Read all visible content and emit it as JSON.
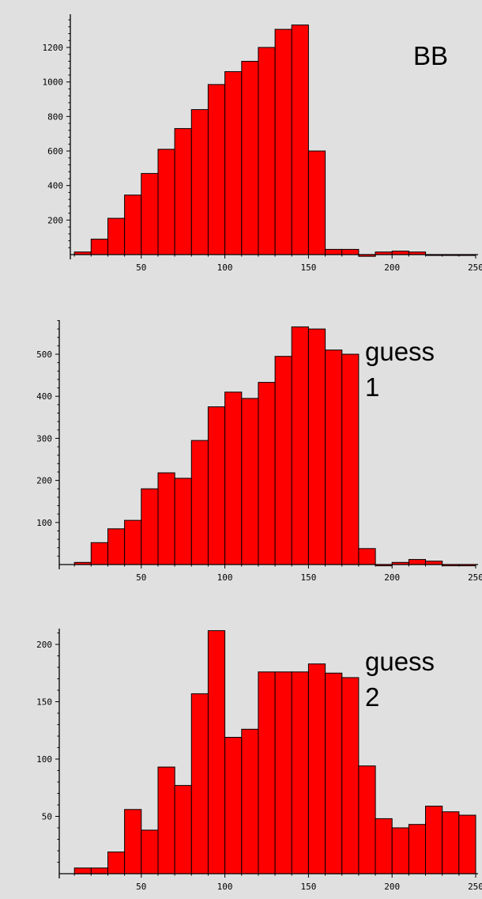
{
  "chart_data": [
    {
      "type": "bar",
      "title": "",
      "panel_label": [
        "BB"
      ],
      "xlim": [
        0,
        250
      ],
      "ylim": [
        0,
        1380
      ],
      "xticks": [
        50,
        100,
        150,
        200,
        250
      ],
      "yticks": [
        200,
        400,
        600,
        800,
        1000,
        1200
      ],
      "bin_width": 10,
      "bins": [
        [
          10,
          20,
          15
        ],
        [
          20,
          30,
          90
        ],
        [
          30,
          40,
          210
        ],
        [
          40,
          50,
          345
        ],
        [
          50,
          60,
          470
        ],
        [
          60,
          70,
          610
        ],
        [
          70,
          80,
          730
        ],
        [
          80,
          90,
          840
        ],
        [
          90,
          100,
          985
        ],
        [
          100,
          110,
          1060
        ],
        [
          110,
          120,
          1120
        ],
        [
          120,
          130,
          1200
        ],
        [
          130,
          140,
          1305
        ],
        [
          140,
          150,
          1330
        ],
        [
          150,
          160,
          600
        ],
        [
          160,
          170,
          30
        ],
        [
          170,
          180,
          30
        ],
        [
          180,
          190,
          -10
        ],
        [
          190,
          200,
          15
        ],
        [
          200,
          210,
          20
        ],
        [
          210,
          220,
          15
        ],
        [
          220,
          230,
          -5
        ],
        [
          230,
          240,
          -5
        ],
        [
          240,
          250,
          -5
        ]
      ],
      "bar_color": "#ff0000",
      "grid": false
    },
    {
      "type": "bar",
      "title": "",
      "panel_label": [
        "guess",
        "1"
      ],
      "xlim": [
        0,
        250
      ],
      "ylim": [
        0,
        580
      ],
      "xticks": [
        50,
        100,
        150,
        200,
        250
      ],
      "yticks": [
        100,
        200,
        300,
        400,
        500
      ],
      "bin_width": 10,
      "bins": [
        [
          10,
          20,
          5
        ],
        [
          20,
          30,
          52
        ],
        [
          30,
          40,
          85
        ],
        [
          40,
          50,
          105
        ],
        [
          50,
          60,
          180
        ],
        [
          60,
          70,
          218
        ],
        [
          70,
          80,
          205
        ],
        [
          80,
          90,
          295
        ],
        [
          90,
          100,
          375
        ],
        [
          100,
          110,
          410
        ],
        [
          110,
          120,
          395
        ],
        [
          120,
          130,
          433
        ],
        [
          130,
          140,
          495
        ],
        [
          140,
          150,
          565
        ],
        [
          150,
          160,
          560
        ],
        [
          160,
          170,
          510
        ],
        [
          170,
          180,
          500
        ],
        [
          180,
          190,
          38
        ],
        [
          190,
          200,
          -3
        ],
        [
          200,
          210,
          5
        ],
        [
          210,
          220,
          12
        ],
        [
          220,
          230,
          8
        ],
        [
          230,
          240,
          -3
        ],
        [
          240,
          250,
          -3
        ]
      ],
      "bar_color": "#ff0000",
      "grid": false
    },
    {
      "type": "bar",
      "title": "",
      "panel_label": [
        "guess",
        "2"
      ],
      "xlim": [
        0,
        250
      ],
      "ylim": [
        0,
        215
      ],
      "xticks": [
        50,
        100,
        150,
        200,
        250
      ],
      "yticks": [
        50,
        100,
        150,
        200
      ],
      "bin_width": 10,
      "bins": [
        [
          10,
          20,
          5
        ],
        [
          20,
          30,
          5
        ],
        [
          30,
          40,
          19
        ],
        [
          40,
          50,
          56
        ],
        [
          50,
          60,
          38
        ],
        [
          60,
          70,
          93
        ],
        [
          70,
          80,
          77
        ],
        [
          80,
          90,
          157
        ],
        [
          90,
          100,
          212
        ],
        [
          100,
          110,
          119
        ],
        [
          110,
          120,
          126
        ],
        [
          120,
          130,
          176
        ],
        [
          130,
          140,
          176
        ],
        [
          140,
          150,
          176
        ],
        [
          150,
          160,
          183
        ],
        [
          160,
          170,
          175
        ],
        [
          170,
          180,
          171
        ],
        [
          180,
          190,
          94
        ],
        [
          190,
          200,
          48
        ],
        [
          200,
          210,
          40
        ],
        [
          210,
          220,
          43
        ],
        [
          220,
          230,
          59
        ],
        [
          230,
          240,
          54
        ],
        [
          240,
          250,
          51
        ]
      ],
      "bar_color": "#ff0000",
      "grid": false
    }
  ]
}
